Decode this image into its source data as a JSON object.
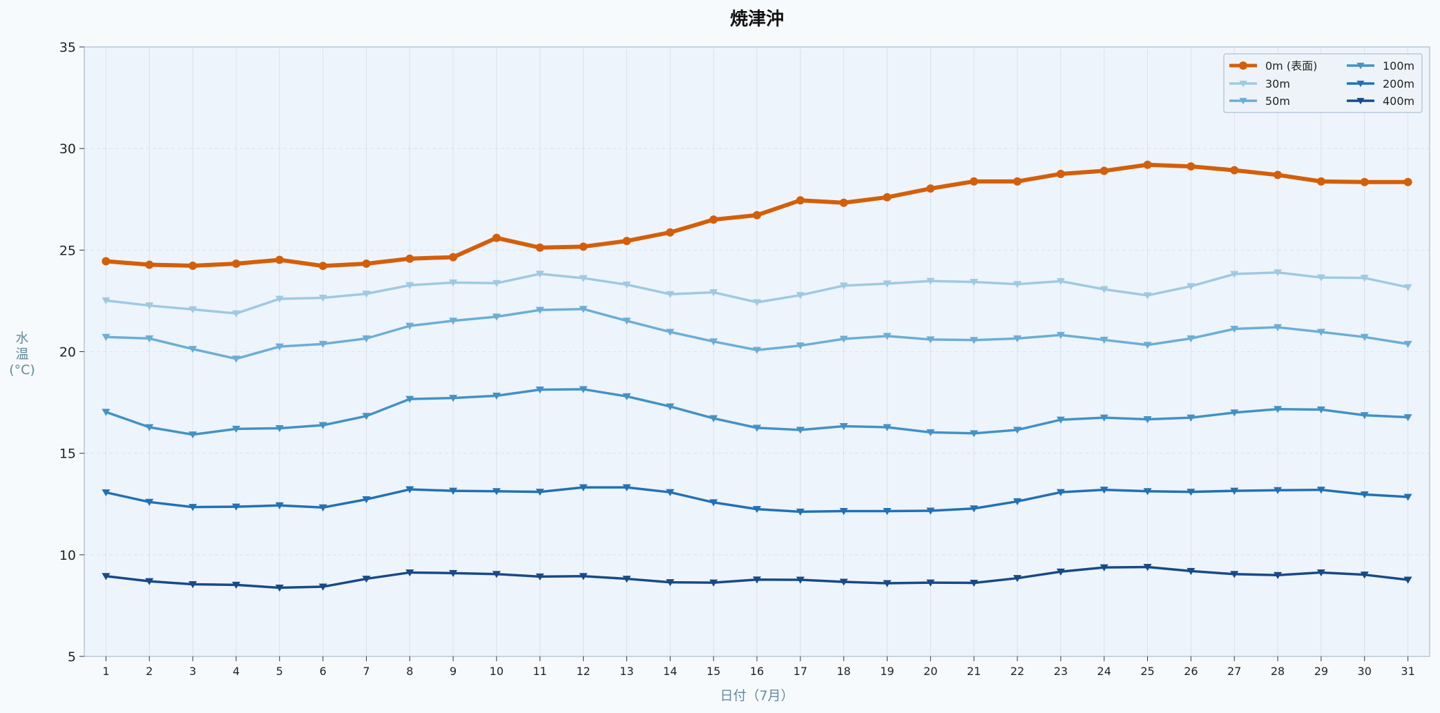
{
  "chart_data": {
    "type": "line",
    "title": "焼津沖",
    "xlabel": "日付（7月）",
    "ylabel": "水温\n(°C)",
    "x": [
      1,
      2,
      3,
      4,
      5,
      6,
      7,
      8,
      9,
      10,
      11,
      12,
      13,
      14,
      15,
      16,
      17,
      18,
      19,
      20,
      21,
      22,
      23,
      24,
      25,
      26,
      27,
      28,
      29,
      30,
      31
    ],
    "xlim": [
      0.5,
      31.5
    ],
    "ylim": [
      5,
      35
    ],
    "yticks": [
      5,
      10,
      15,
      20,
      25,
      30,
      35
    ],
    "grid": true,
    "legend_placement": "top-right",
    "legend_columns": 2,
    "series": [
      {
        "name": "0m (表面)",
        "color": "#d35f0a",
        "marker": "circle",
        "emphasis": "thick",
        "values": [
          24.45,
          24.28,
          24.23,
          24.33,
          24.52,
          24.22,
          24.33,
          24.58,
          24.65,
          25.6,
          25.12,
          25.17,
          25.45,
          25.87,
          26.5,
          26.72,
          27.45,
          27.33,
          27.6,
          28.03,
          28.38,
          28.38,
          28.75,
          28.9,
          29.2,
          29.12,
          28.93,
          28.7,
          28.38,
          28.35,
          28.35
        ]
      },
      {
        "name": "30m",
        "color": "#9ecae1",
        "marker": "triangle-down",
        "values": [
          22.52,
          22.27,
          22.08,
          21.88,
          22.6,
          22.65,
          22.85,
          23.27,
          23.4,
          23.37,
          23.83,
          23.62,
          23.3,
          22.83,
          22.92,
          22.43,
          22.78,
          23.25,
          23.35,
          23.48,
          23.43,
          23.32,
          23.47,
          23.07,
          22.77,
          23.22,
          23.82,
          23.9,
          23.65,
          23.63,
          23.17
        ]
      },
      {
        "name": "50m",
        "color": "#6baed6",
        "marker": "triangle-down",
        "values": [
          20.72,
          20.65,
          20.13,
          19.65,
          20.25,
          20.38,
          20.65,
          21.27,
          21.52,
          21.72,
          22.05,
          22.1,
          21.52,
          20.97,
          20.5,
          20.08,
          20.3,
          20.63,
          20.77,
          20.6,
          20.57,
          20.65,
          20.82,
          20.58,
          20.33,
          20.65,
          21.12,
          21.2,
          20.97,
          20.72,
          20.38
        ]
      },
      {
        "name": "100m",
        "color": "#4292c6",
        "marker": "triangle-down",
        "values": [
          17.03,
          16.28,
          15.92,
          16.2,
          16.23,
          16.38,
          16.83,
          17.67,
          17.72,
          17.83,
          18.13,
          18.15,
          17.8,
          17.3,
          16.72,
          16.25,
          16.15,
          16.33,
          16.28,
          16.03,
          15.98,
          16.15,
          16.65,
          16.75,
          16.67,
          16.75,
          17,
          17.17,
          17.15,
          16.87,
          16.77
        ]
      },
      {
        "name": "200m",
        "color": "#2171b5",
        "marker": "triangle-down",
        "values": [
          13.07,
          12.6,
          12.35,
          12.37,
          12.43,
          12.33,
          12.73,
          13.22,
          13.15,
          13.13,
          13.1,
          13.32,
          13.32,
          13.08,
          12.58,
          12.25,
          12.12,
          12.15,
          12.15,
          12.17,
          12.28,
          12.63,
          13.08,
          13.2,
          13.13,
          13.1,
          13.15,
          13.18,
          13.2,
          12.97,
          12.85
        ]
      },
      {
        "name": "400m",
        "color": "#174a87",
        "marker": "triangle-down",
        "values": [
          8.95,
          8.7,
          8.55,
          8.52,
          8.38,
          8.43,
          8.82,
          9.13,
          9.1,
          9.05,
          8.93,
          8.95,
          8.82,
          8.65,
          8.63,
          8.78,
          8.77,
          8.67,
          8.6,
          8.63,
          8.62,
          8.85,
          9.17,
          9.38,
          9.4,
          9.2,
          9.05,
          9,
          9.13,
          9.02,
          8.77
        ]
      }
    ]
  }
}
